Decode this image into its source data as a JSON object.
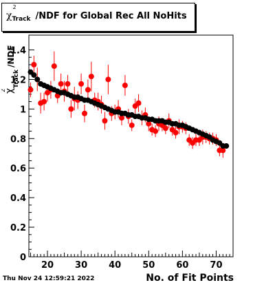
{
  "chart_data": {
    "type": "scatter",
    "title_prefix": "χ",
    "title_sup": "2",
    "title_sub": "Track",
    "title_suffix": "/NDF for Global Rec All NoHits",
    "ylabel_sym": "χ",
    "ylabel_sup": "2",
    "ylabel_sub": "Track",
    "ylabel_suffix": "/NDF",
    "xlabel": "No. of Fit Points",
    "timestamp": "Thu Nov 24 12:59:21 2022",
    "xlim": [
      14.5,
      75
    ],
    "ylim": [
      0,
      1.5
    ],
    "x_ticks": [
      "20",
      "30",
      "40",
      "50",
      "60",
      "70"
    ],
    "y_ticks": [
      "0",
      "0.2",
      "0.4",
      "0.6",
      "0.8",
      "1",
      "1.2",
      "1.4"
    ],
    "series": [
      {
        "color": "#000000",
        "x": [
          15,
          16,
          17,
          18,
          19,
          20,
          21,
          22,
          23,
          24,
          25,
          26,
          27,
          28,
          29,
          30,
          31,
          32,
          33,
          34,
          35,
          36,
          37,
          38,
          39,
          40,
          41,
          42,
          43,
          44,
          45,
          46,
          47,
          48,
          49,
          50,
          51,
          52,
          53,
          54,
          55,
          56,
          57,
          58,
          59,
          60,
          61,
          62,
          63,
          64,
          65,
          66,
          67,
          68,
          69,
          70,
          71,
          72,
          73
        ],
        "y": [
          1.25,
          1.23,
          1.2,
          1.17,
          1.16,
          1.15,
          1.14,
          1.13,
          1.12,
          1.11,
          1.11,
          1.1,
          1.09,
          1.08,
          1.08,
          1.07,
          1.06,
          1.06,
          1.05,
          1.04,
          1.03,
          1.02,
          1.01,
          1.0,
          0.99,
          0.98,
          0.98,
          0.97,
          0.97,
          0.96,
          0.96,
          0.95,
          0.95,
          0.94,
          0.94,
          0.93,
          0.93,
          0.92,
          0.92,
          0.92,
          0.91,
          0.91,
          0.9,
          0.9,
          0.89,
          0.89,
          0.88,
          0.87,
          0.86,
          0.85,
          0.84,
          0.83,
          0.82,
          0.81,
          0.79,
          0.78,
          0.77,
          0.75,
          0.75
        ]
      },
      {
        "color": "#ff0000",
        "x": [
          15,
          16,
          17,
          18,
          19,
          20,
          21,
          22,
          23,
          24,
          25,
          26,
          27,
          28,
          29,
          30,
          31,
          32,
          33,
          34,
          35,
          36,
          37,
          38,
          39,
          40,
          41,
          42,
          43,
          44,
          45,
          46,
          47,
          48,
          49,
          50,
          51,
          52,
          53,
          54,
          55,
          56,
          57,
          58,
          59,
          60,
          61,
          62,
          63,
          64,
          65,
          66,
          67,
          68,
          69,
          70,
          71,
          72
        ],
        "y": [
          1.13,
          1.3,
          1.2,
          1.04,
          1.05,
          1.11,
          1.13,
          1.29,
          1.09,
          1.17,
          1.12,
          1.17,
          1.0,
          1.07,
          1.06,
          1.17,
          0.97,
          1.13,
          1.22,
          1.06,
          1.05,
          1.03,
          0.92,
          1.2,
          0.97,
          0.98,
          1.0,
          0.94,
          1.16,
          0.95,
          0.89,
          1.02,
          1.04,
          0.94,
          0.96,
          0.9,
          0.86,
          0.85,
          0.9,
          0.89,
          0.87,
          0.92,
          0.86,
          0.84,
          0.88,
          0.88,
          0.87,
          0.79,
          0.77,
          0.79,
          0.79,
          0.81,
          0.81,
          0.8,
          0.8,
          0.79,
          0.72,
          0.72
        ],
        "err": [
          0.05,
          0.06,
          0.08,
          0.07,
          0.06,
          0.06,
          0.06,
          0.1,
          0.05,
          0.07,
          0.07,
          0.06,
          0.06,
          0.08,
          0.06,
          0.07,
          0.06,
          0.07,
          0.1,
          0.05,
          0.06,
          0.06,
          0.06,
          0.1,
          0.05,
          0.05,
          0.06,
          0.05,
          0.07,
          0.05,
          0.04,
          0.05,
          0.06,
          0.05,
          0.05,
          0.05,
          0.04,
          0.04,
          0.05,
          0.04,
          0.04,
          0.05,
          0.04,
          0.04,
          0.05,
          0.04,
          0.04,
          0.04,
          0.04,
          0.04,
          0.04,
          0.05,
          0.04,
          0.04,
          0.04,
          0.04,
          0.04,
          0.05
        ]
      }
    ]
  }
}
